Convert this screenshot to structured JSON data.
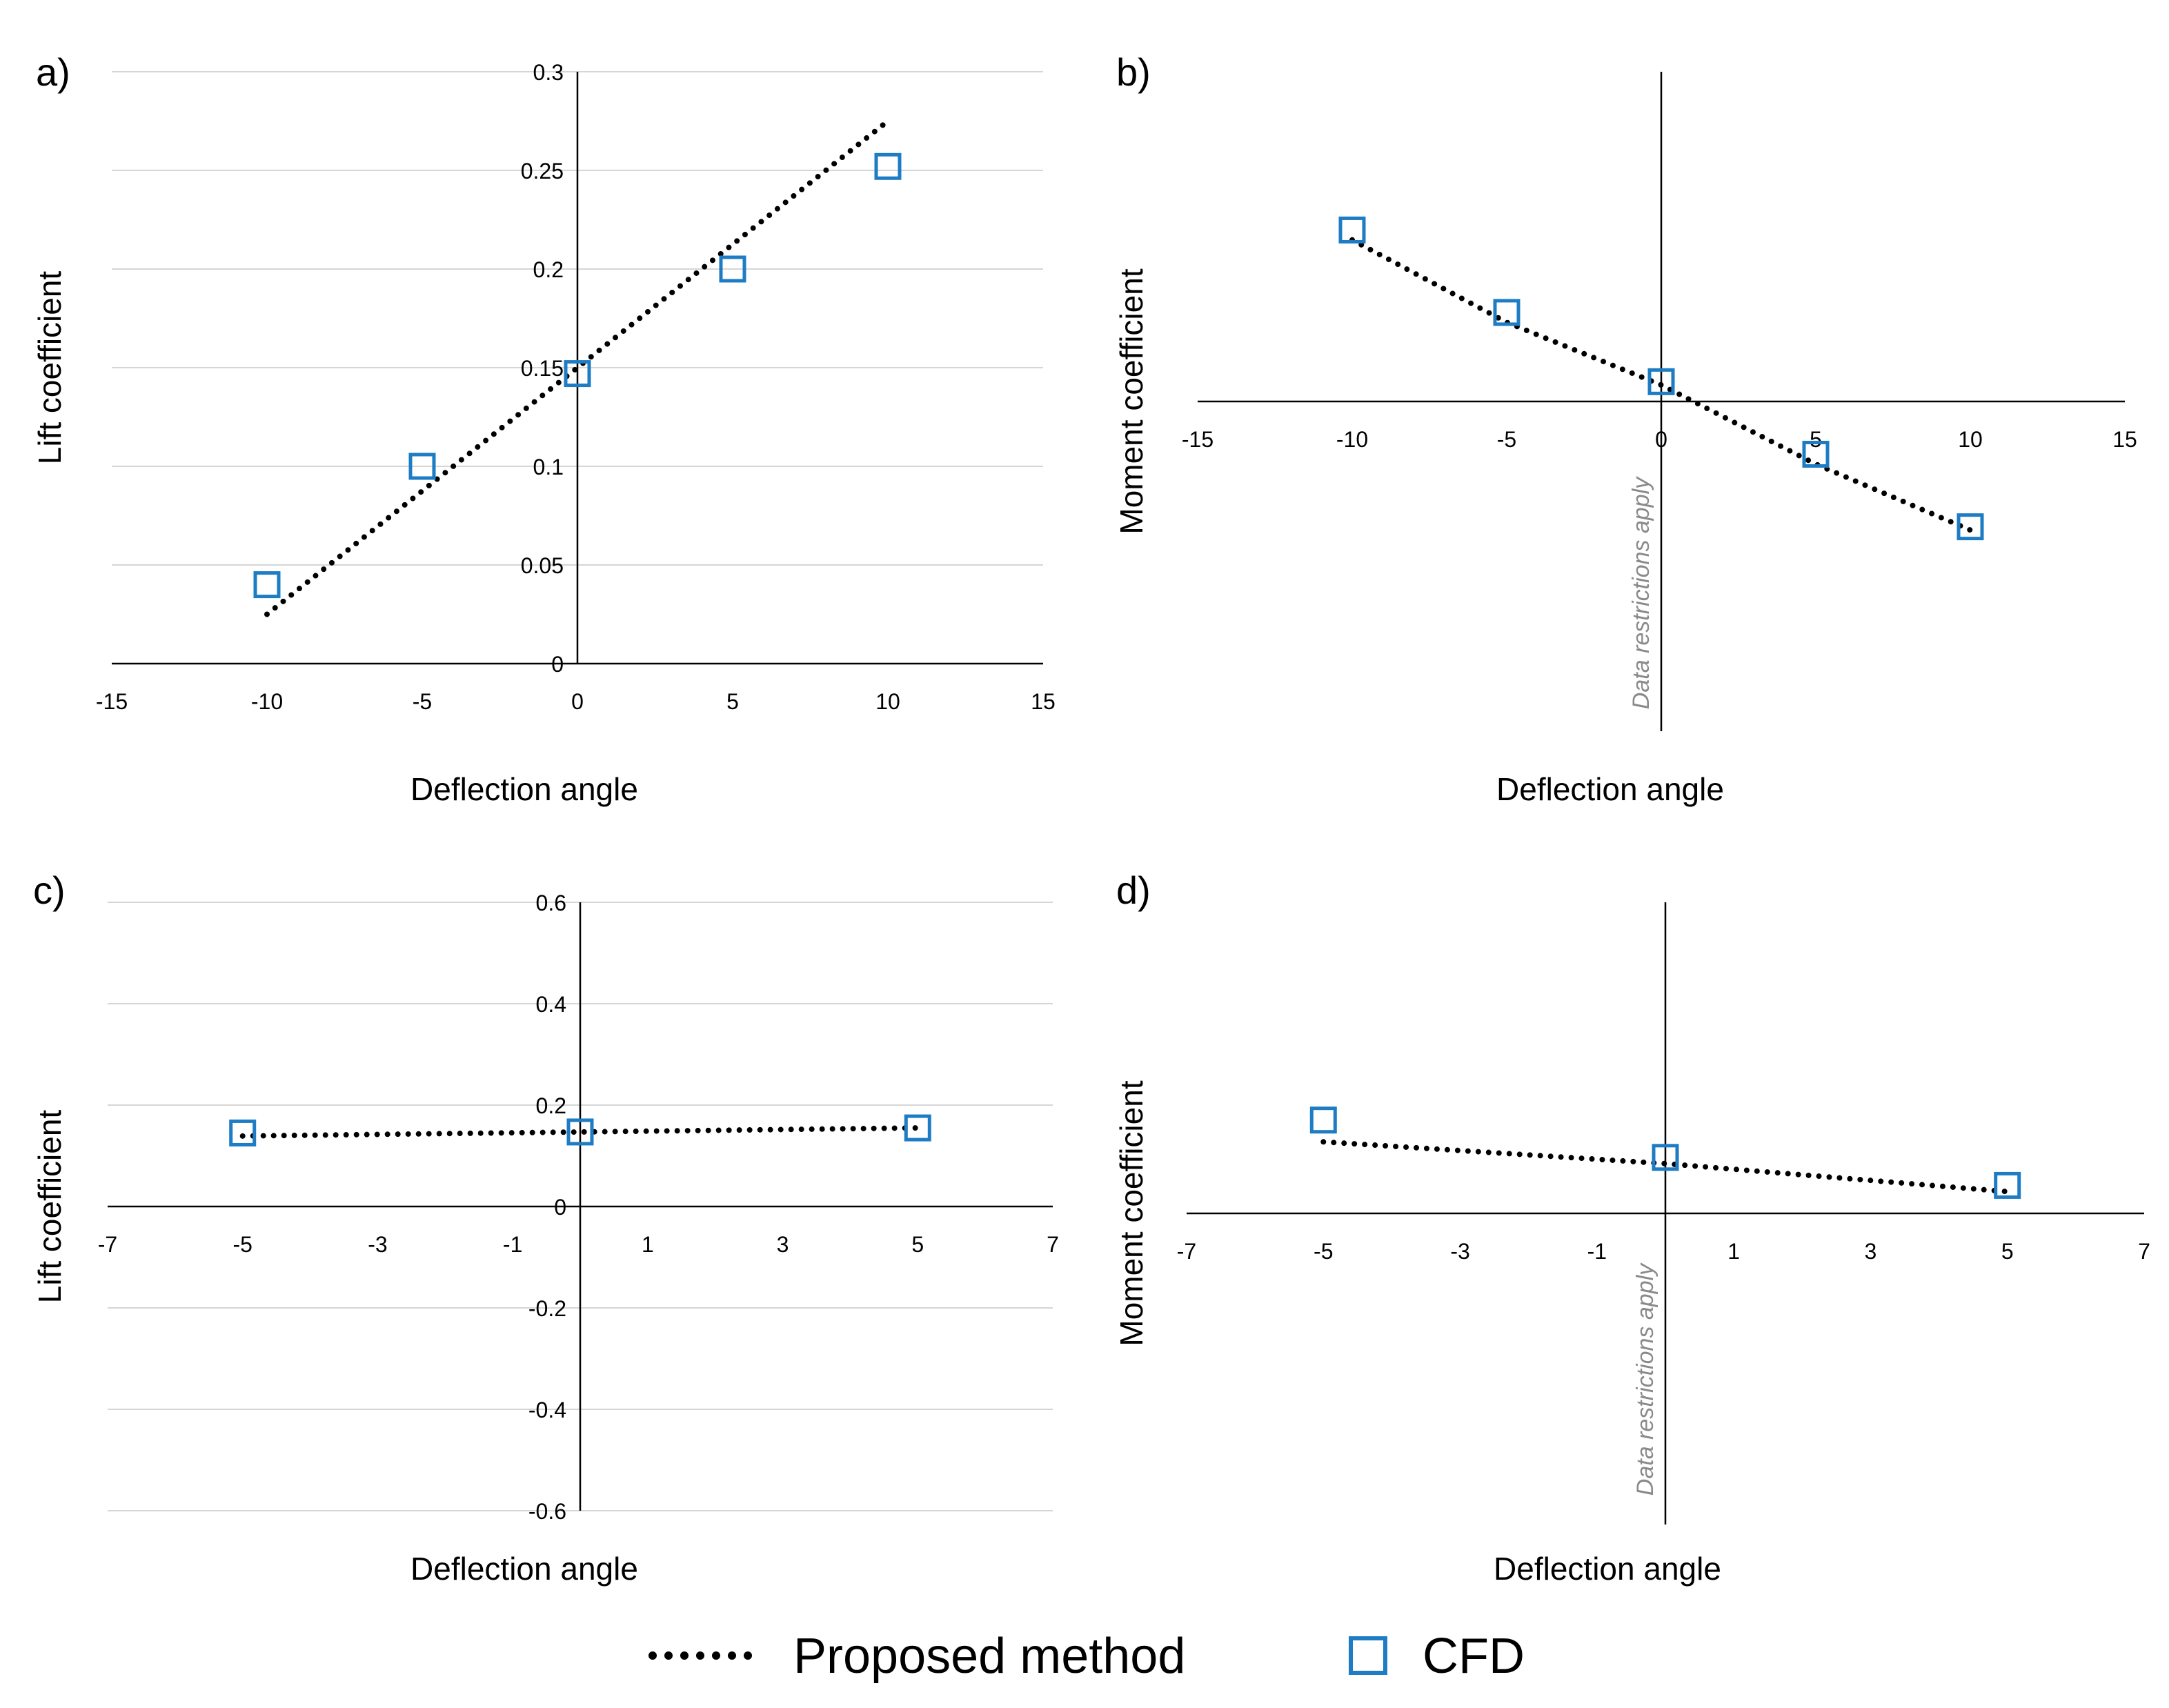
{
  "chart_data": [
    {
      "id": "a",
      "panel_label": "a)",
      "type": "scatter",
      "xlabel": "Deflection angle",
      "ylabel": "Lift coefficient",
      "xlim": [
        -15,
        15
      ],
      "ylim": [
        0,
        0.3
      ],
      "xticks": [
        -15,
        -10,
        -5,
        0,
        5,
        10,
        15
      ],
      "yticks": [
        0,
        0.05,
        0.1,
        0.15,
        0.2,
        0.25,
        0.3
      ],
      "show_yticks": true,
      "grid": "horizontal",
      "series": [
        {
          "name": "Proposed method",
          "style": "dotted-line",
          "x": [
            -10,
            10
          ],
          "y": [
            0.025,
            0.275
          ]
        },
        {
          "name": "CFD",
          "style": "open-square",
          "x": [
            -10,
            -5,
            0,
            5,
            10
          ],
          "y": [
            0.04,
            0.1,
            0.147,
            0.2,
            0.252
          ]
        }
      ],
      "watermark": ""
    },
    {
      "id": "b",
      "panel_label": "b)",
      "type": "scatter",
      "xlabel": "Deflection angle",
      "ylabel": "Moment coefficient",
      "xlim": [
        -15,
        15
      ],
      "ylim": [
        -1,
        1
      ],
      "xticks": [
        -15,
        -10,
        -5,
        0,
        5,
        10,
        15
      ],
      "yticks": [],
      "show_yticks": false,
      "grid": "none",
      "series": [
        {
          "name": "Proposed method",
          "style": "dotted-line",
          "x": [
            -10,
            -5,
            0,
            5,
            10
          ],
          "y": [
            0.49,
            0.24,
            0.05,
            -0.19,
            -0.39
          ]
        },
        {
          "name": "CFD",
          "style": "open-square",
          "x": [
            -10,
            -5,
            0,
            5,
            10
          ],
          "y": [
            0.52,
            0.27,
            0.06,
            -0.16,
            -0.38
          ]
        }
      ],
      "watermark": "Data restrictions apply"
    },
    {
      "id": "c",
      "panel_label": "c)",
      "type": "scatter",
      "xlabel": "Deflection angle",
      "ylabel": "Lift coefficient",
      "xlim": [
        -7,
        7
      ],
      "ylim": [
        -0.6,
        0.6
      ],
      "xticks": [
        -7,
        -5,
        -3,
        -1,
        1,
        3,
        5,
        7
      ],
      "yticks": [
        -0.6,
        -0.4,
        -0.2,
        0,
        0.2,
        0.4,
        0.6
      ],
      "show_yticks": true,
      "grid": "horizontal",
      "series": [
        {
          "name": "Proposed method",
          "style": "dotted-line",
          "x": [
            -5,
            0,
            5
          ],
          "y": [
            0.139,
            0.147,
            0.155
          ]
        },
        {
          "name": "CFD",
          "style": "open-square",
          "x": [
            -5,
            0,
            5
          ],
          "y": [
            0.145,
            0.147,
            0.155
          ]
        }
      ],
      "watermark": ""
    },
    {
      "id": "d",
      "panel_label": "d)",
      "type": "scatter",
      "xlabel": "Deflection angle",
      "ylabel": "Moment coefficient",
      "xlim": [
        -7,
        7
      ],
      "ylim": [
        -1,
        1
      ],
      "xticks": [
        -7,
        -5,
        -3,
        -1,
        1,
        3,
        5,
        7
      ],
      "yticks": [],
      "show_yticks": false,
      "grid": "none",
      "series": [
        {
          "name": "Proposed method",
          "style": "dotted-line",
          "x": [
            -5,
            0,
            5
          ],
          "y": [
            0.23,
            0.16,
            0.07
          ]
        },
        {
          "name": "CFD",
          "style": "open-square",
          "x": [
            -5,
            0,
            5
          ],
          "y": [
            0.3,
            0.18,
            0.09
          ]
        }
      ],
      "watermark": "Data restrictions apply"
    }
  ],
  "legend": [
    {
      "label": "Proposed method",
      "marker": "dotted-line"
    },
    {
      "label": "CFD",
      "marker": "open-square"
    }
  ],
  "colors": {
    "cfd": "#1d7cc4",
    "line": "#000000",
    "grid": "#d6d6d6",
    "axis": "#000000",
    "watermark": "#8a8a8a"
  }
}
